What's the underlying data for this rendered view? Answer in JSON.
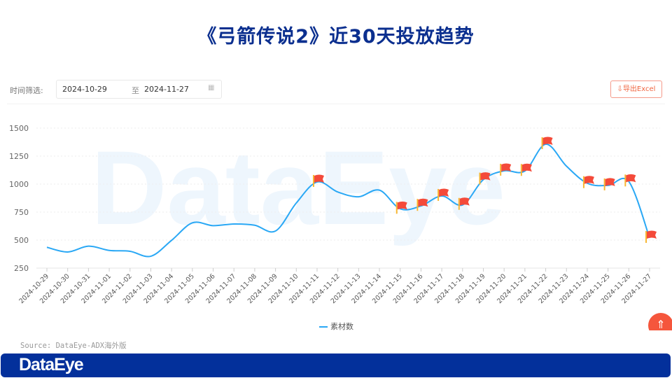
{
  "title": "《弓箭传说2》近30天投放趋势",
  "filter": {
    "label": "时间筛选:",
    "start": "2024-10-29",
    "separator": "至",
    "end": "2024-11-27",
    "icon": "calendar-icon"
  },
  "export_button": {
    "label": "导出Excel",
    "icon": "download-icon"
  },
  "source": "Source: DataEye-ADX海外版",
  "footer_logo": "DataEye",
  "watermark": "DataEye",
  "colors": {
    "line": "#2aa8f5",
    "title": "#0b2f8f",
    "footer": "#03309b",
    "flag": "#f44a3a",
    "flag_pole": "#f7b733"
  },
  "chart_data": {
    "type": "line",
    "title": "",
    "xlabel": "",
    "ylabel": "",
    "ylim": [
      250,
      1500
    ],
    "yticks": [
      250,
      500,
      750,
      1000,
      1250,
      1500
    ],
    "grid": true,
    "legend_position": "bottom",
    "smooth": true,
    "categories": [
      "2024-10-29",
      "2024-10-30",
      "2024-10-31",
      "2024-11-01",
      "2024-11-02",
      "2024-11-03",
      "2024-11-04",
      "2024-11-05",
      "2024-11-06",
      "2024-11-07",
      "2024-11-08",
      "2024-11-09",
      "2024-11-10",
      "2024-11-11",
      "2024-11-12",
      "2024-11-13",
      "2024-11-14",
      "2024-11-15",
      "2024-11-16",
      "2024-11-17",
      "2024-11-18",
      "2024-11-19",
      "2024-11-20",
      "2024-11-21",
      "2024-11-22",
      "2024-11-23",
      "2024-11-24",
      "2024-11-25",
      "2024-11-26",
      "2024-11-27"
    ],
    "series": [
      {
        "name": "素材数",
        "values": [
          436,
          394,
          446,
          408,
          400,
          356,
          498,
          654,
          629,
          644,
          633,
          581,
          831,
          1019,
          929,
          887,
          946,
          779,
          805,
          894,
          814,
          1040,
          1119,
          1117,
          1356,
          1160,
          1008,
          988,
          1023,
          519
        ]
      }
    ],
    "flagged_dates": [
      "2024-11-11",
      "2024-11-15",
      "2024-11-16",
      "2024-11-17",
      "2024-11-18",
      "2024-11-19",
      "2024-11-20",
      "2024-11-21",
      "2024-11-22",
      "2024-11-24",
      "2024-11-25",
      "2024-11-26",
      "2024-11-27"
    ]
  }
}
